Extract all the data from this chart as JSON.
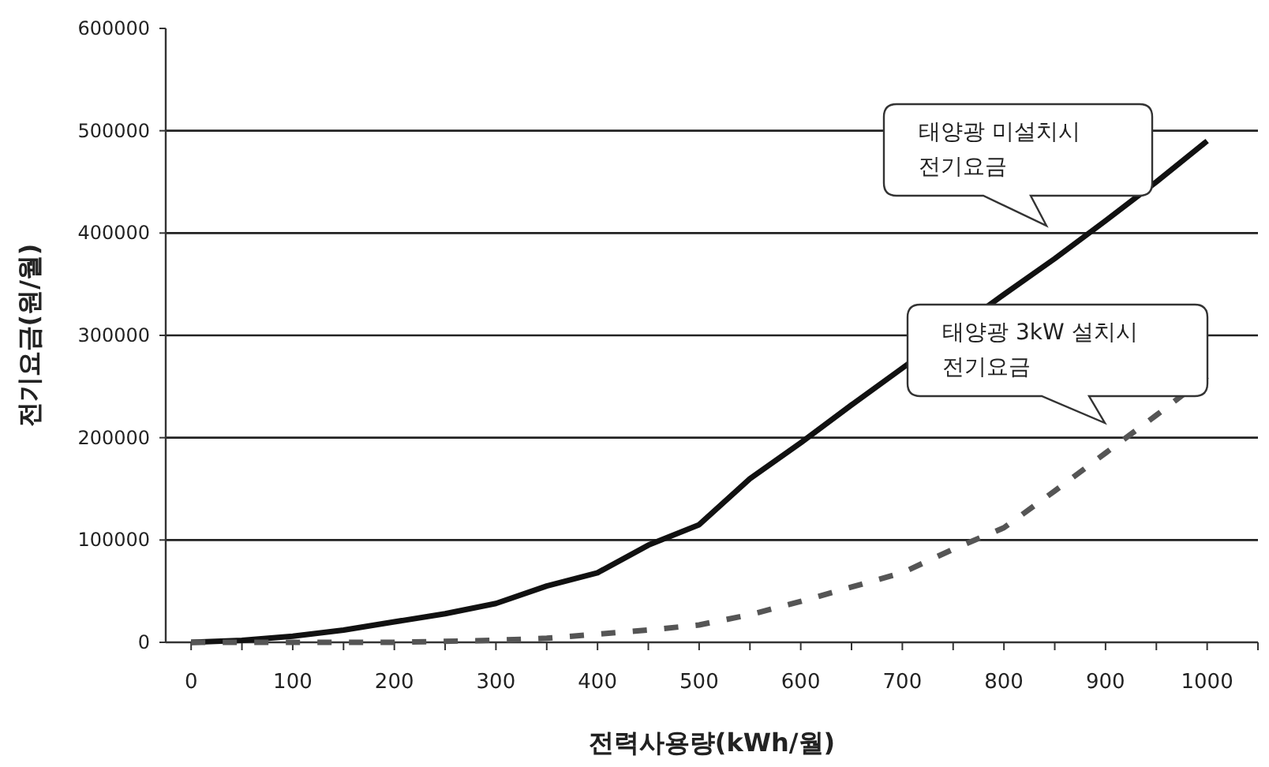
{
  "chart_data": {
    "type": "line",
    "xlabel": "전력사용량(kWh/월)",
    "ylabel": "전기요금(원/월)",
    "series": [
      {
        "color": "#111111",
        "line_style": "solid",
        "x": [
          0,
          50,
          100,
          150,
          200,
          250,
          300,
          350,
          400,
          450,
          500,
          550,
          600,
          650,
          700,
          800,
          850,
          900,
          950,
          1000
        ],
        "values": [
          0,
          2000,
          6000,
          12000,
          20000,
          28000,
          38000,
          55000,
          68000,
          95000,
          115000,
          160000,
          195000,
          232000,
          268000,
          340000,
          375000,
          412000,
          450000,
          490000
        ]
      },
      {
        "color": "#555555",
        "line_style": "dashed",
        "x": [
          0,
          100,
          200,
          300,
          350,
          400,
          450,
          500,
          550,
          600,
          650,
          700,
          750,
          800,
          850,
          900,
          950,
          1000
        ],
        "values": [
          0,
          0,
          0,
          2000,
          4000,
          8000,
          12000,
          17000,
          27000,
          40000,
          54000,
          68000,
          91000,
          112000,
          148000,
          185000,
          222000,
          260000
        ]
      }
    ],
    "annotations": [
      "태양광 미설치시\n전기요금",
      "태양광 3kW 설치시\n전기요금"
    ],
    "xlim": [
      -25,
      1050
    ],
    "ylim": [
      0,
      600000
    ],
    "xticks": [
      0,
      {
        "value": 50,
        "label": null
      },
      100,
      {
        "value": 150,
        "label": null
      },
      200,
      {
        "value": 250,
        "label": null
      },
      300,
      {
        "value": 350,
        "label": null
      },
      400,
      {
        "value": 450,
        "label": null
      },
      500,
      {
        "value": 550,
        "label": null
      },
      600,
      {
        "value": 650,
        "label": null
      },
      700,
      {
        "value": 750,
        "label": null
      },
      800,
      {
        "value": 850,
        "label": null
      },
      900,
      {
        "value": 950,
        "label": null
      },
      1000,
      {
        "value": 1050,
        "label": null
      }
    ],
    "yticks": [
      0,
      100000,
      200000,
      300000,
      400000,
      500000,
      600000
    ],
    "grid": "y",
    "marker": "none"
  }
}
